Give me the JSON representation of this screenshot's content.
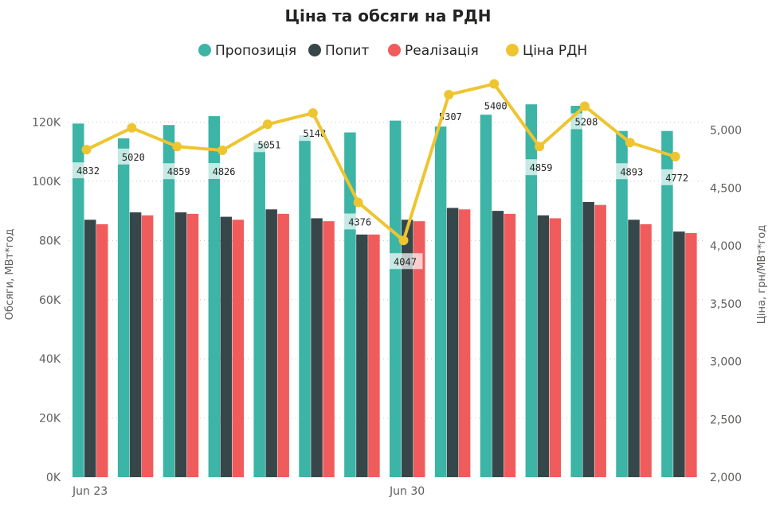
{
  "chart_data": {
    "type": "bar",
    "title": "Ціна та обсяги на РДН",
    "x_tick_labels": [
      {
        "index": 0,
        "label": "Jun 23"
      },
      {
        "index": 7,
        "label": "Jun 30"
      }
    ],
    "series": [
      {
        "name": "Пропозиція",
        "color": "#3cb4a6",
        "axis": "left",
        "values": [
          119500,
          114500,
          119000,
          122000,
          113000,
          115500,
          116500,
          120500,
          118500,
          122500,
          126000,
          125500,
          117000,
          117000
        ]
      },
      {
        "name": "Попит",
        "color": "#374649",
        "axis": "left",
        "values": [
          87000,
          89500,
          89500,
          88000,
          90500,
          87500,
          82000,
          87000,
          91000,
          90000,
          88500,
          93000,
          87000,
          83000
        ]
      },
      {
        "name": "Реалізація",
        "color": "#f05c5c",
        "axis": "left",
        "values": [
          85500,
          88500,
          89000,
          87000,
          89000,
          86500,
          82000,
          86500,
          90500,
          89000,
          87500,
          92000,
          85500,
          82500
        ]
      },
      {
        "name": "Ціна РДН",
        "color": "#eec530",
        "axis": "right",
        "type": "line",
        "values": [
          4832,
          5020,
          4859,
          4826,
          5051,
          5148,
          4376,
          4047,
          5307,
          5400,
          4859,
          5208,
          4893,
          4772
        ]
      }
    ],
    "data_labels": [
      "4832",
      "5020",
      "4859",
      "4826",
      "5051",
      "5148",
      "4376",
      "4047",
      "5307",
      "5400",
      "4859",
      "5208",
      "4893",
      "4772"
    ],
    "ylabel_left": "Обсяги, МВт*год",
    "ylabel_right": "Ціна, грн/МВт*год",
    "ylim_left": [
      0,
      125000
    ],
    "ylim_right": [
      2000,
      5500
    ],
    "yticks_left": [
      "0K",
      "20K",
      "40K",
      "60K",
      "80K",
      "100K",
      "120K"
    ],
    "yticks_right": [
      "2,000",
      "2,500",
      "3,000",
      "3,500",
      "4,000",
      "4,500",
      "5,000"
    ],
    "grid": true,
    "legend_position": "top-center"
  }
}
